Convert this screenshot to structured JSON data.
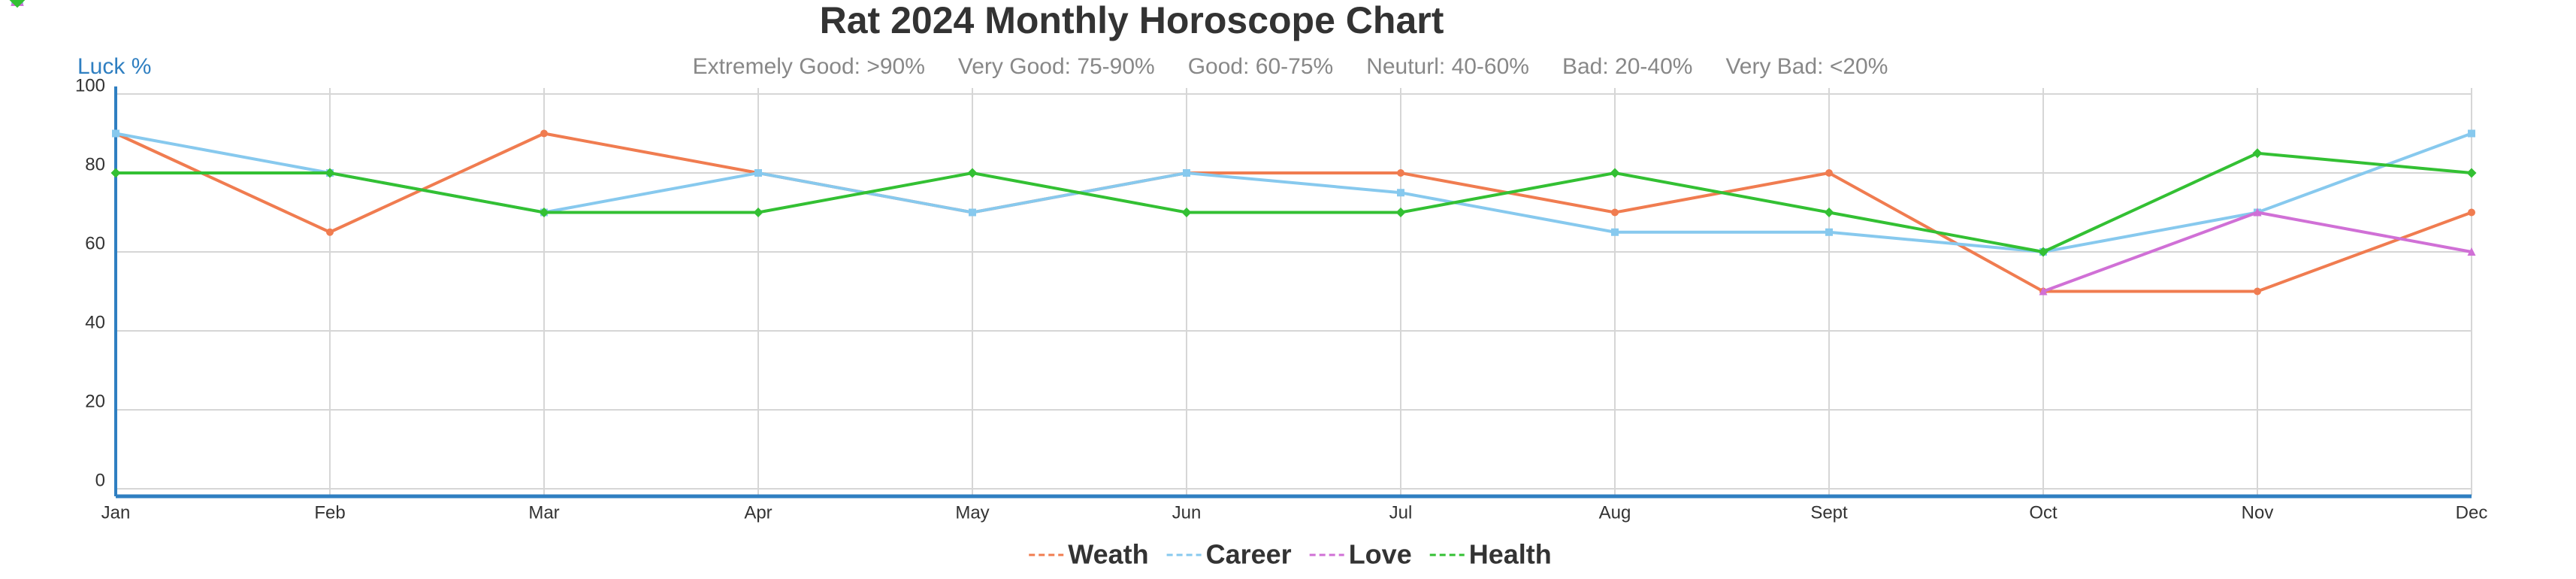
{
  "chart_data": {
    "type": "line",
    "title": "Rat 2024 Monthly Horoscope Chart",
    "y_label": "Luck %",
    "annotations": [
      "Extremely Good: >90%",
      "Very Good: 75-90%",
      "Good: 60-75%",
      "Neuturl: 40-60%",
      "Bad: 20-40%",
      "Very Bad: <20%"
    ],
    "categories": [
      "Jan",
      "Feb",
      "Mar",
      "Apr",
      "May",
      "Jun",
      "Jul",
      "Aug",
      "Sept",
      "Oct",
      "Nov",
      "Dec"
    ],
    "series": [
      {
        "name": "Weath",
        "color": "#f07c50",
        "marker": "circle",
        "values": [
          90,
          65,
          90,
          80,
          70,
          80,
          80,
          70,
          80,
          50,
          50,
          70
        ]
      },
      {
        "name": "Career",
        "color": "#87c9ee",
        "marker": "square",
        "values": [
          90,
          80,
          70,
          80,
          70,
          80,
          75,
          65,
          65,
          60,
          70,
          90
        ]
      },
      {
        "name": "Love",
        "color": "#d070d6",
        "marker": "triangle",
        "values": [
          null,
          null,
          null,
          null,
          null,
          null,
          null,
          null,
          null,
          50,
          70,
          60
        ]
      },
      {
        "name": "Health",
        "color": "#33c033",
        "marker": "diamond",
        "values": [
          80,
          80,
          70,
          70,
          80,
          70,
          70,
          80,
          70,
          60,
          85,
          80
        ]
      }
    ],
    "ylim": [
      0,
      100
    ],
    "yticks": [
      0,
      20,
      40,
      60,
      80,
      100
    ],
    "grid": true
  }
}
